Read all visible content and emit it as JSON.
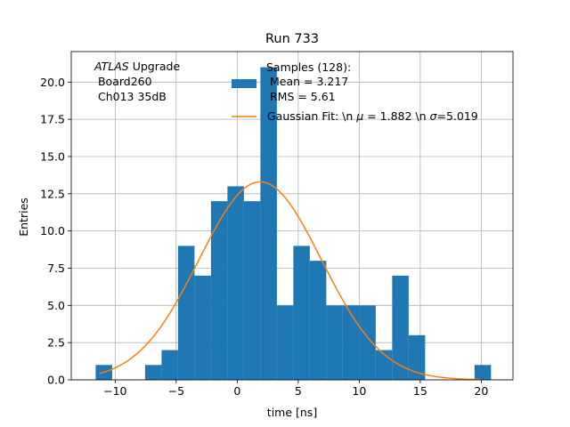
{
  "colors": {
    "bar": "#1f77b4",
    "fit": "#ff7f0e",
    "grid": "#b0b0b0",
    "axis": "#000000"
  },
  "chart_data": {
    "type": "bar",
    "title": "Run 733",
    "xlabel": "time [ns]",
    "ylabel": "Entries",
    "xlim": [
      -13.6,
      22.6
    ],
    "ylim": [
      0,
      22.05
    ],
    "grid": true,
    "x_ticks": [
      -10,
      -5,
      0,
      5,
      10,
      15,
      20
    ],
    "x_tick_labels": [
      "−10",
      "−5",
      "0",
      "5",
      "10",
      "15",
      "20"
    ],
    "y_ticks": [
      0,
      2.5,
      5,
      7.5,
      10,
      12.5,
      15,
      17.5,
      20
    ],
    "y_tick_labels": [
      "0.0",
      "2.5",
      "5.0",
      "7.5",
      "10.0",
      "12.5",
      "15.0",
      "17.5",
      "20.0"
    ],
    "histogram": {
      "name": "Samples (128):",
      "bins": [
        {
          "x0": -11.6,
          "x1": -10.25,
          "count": 1
        },
        {
          "x0": -7.55,
          "x1": -6.2,
          "count": 1
        },
        {
          "x0": -6.2,
          "x1": -4.85,
          "count": 2
        },
        {
          "x0": -4.85,
          "x1": -3.5,
          "count": 9
        },
        {
          "x0": -3.5,
          "x1": -2.15,
          "count": 7
        },
        {
          "x0": -2.15,
          "x1": -0.8,
          "count": 12
        },
        {
          "x0": -0.8,
          "x1": 0.55,
          "count": 13
        },
        {
          "x0": 0.55,
          "x1": 1.9,
          "count": 12
        },
        {
          "x0": 1.9,
          "x1": 3.25,
          "count": 21
        },
        {
          "x0": 3.25,
          "x1": 4.6,
          "count": 5
        },
        {
          "x0": 4.6,
          "x1": 5.95,
          "count": 9
        },
        {
          "x0": 5.95,
          "x1": 7.3,
          "count": 8
        },
        {
          "x0": 7.3,
          "x1": 8.65,
          "count": 5
        },
        {
          "x0": 8.65,
          "x1": 10.0,
          "count": 5
        },
        {
          "x0": 10.0,
          "x1": 11.35,
          "count": 5
        },
        {
          "x0": 11.35,
          "x1": 12.7,
          "count": 2
        },
        {
          "x0": 12.7,
          "x1": 14.05,
          "count": 7
        },
        {
          "x0": 14.05,
          "x1": 15.4,
          "count": 3
        },
        {
          "x0": 19.45,
          "x1": 20.8,
          "count": 1
        }
      ]
    },
    "fit": {
      "name": "Gaussian Fit: \\n μ = 1.882 \\n σ=5.019",
      "mu": 1.882,
      "sigma": 5.019,
      "amplitude": 13.3,
      "x_range": [
        -11.3,
        20.0
      ]
    },
    "legend": {
      "position": "top-right",
      "hist_lines": [
        "Samples (128):",
        " Mean = 3.217",
        " RMS = 5.61"
      ],
      "fit_label_parts": [
        "Gaussian Fit: \\n ",
        "μ",
        " = 1.882 \\n ",
        "σ",
        "=5.019"
      ]
    },
    "annotation": {
      "italic": "ATLAS",
      "rest": " Upgrade",
      "line2": " Board260",
      "line3": " Ch013 35dB"
    }
  }
}
